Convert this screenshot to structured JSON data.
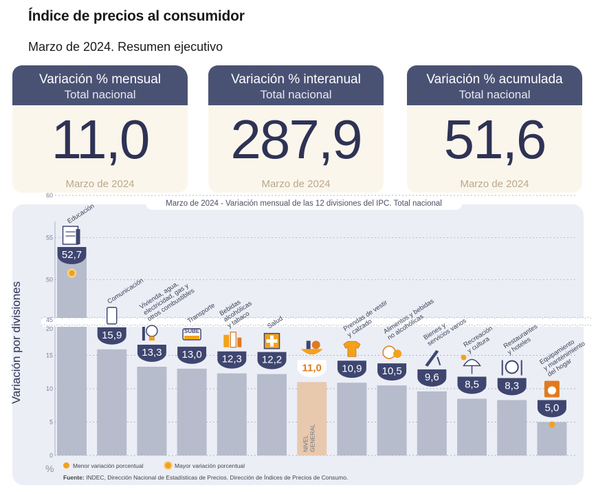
{
  "header": {
    "title": "Índice de precios al consumidor",
    "subtitle": "Marzo de 2024. Resumen ejecutivo"
  },
  "cards": [
    {
      "line1": "Variación % mensual",
      "line2": "Total nacional",
      "value": "11,0",
      "footer": "Marzo de 2024"
    },
    {
      "line1": "Variación % interanual",
      "line2": "Total nacional",
      "value": "287,9",
      "footer": "Marzo de 2024"
    },
    {
      "line1": "Variación % acumulada",
      "line2": "Total nacional",
      "value": "51,6",
      "footer": "Marzo de 2024"
    }
  ],
  "colors": {
    "navy": "#4a5274",
    "bar": "#b6bccb",
    "general_bar": "#e8c9ae",
    "accent": "#f2a21b",
    "label_navy": "#3e4670",
    "general_label": "#e07b1f"
  },
  "chart_data": {
    "type": "bar",
    "title_prefix": "Marzo de 2024",
    "title": "- Variación mensual de las 12 divisiones del IPC. Total nacional",
    "ylabel": "Variación por divisiones",
    "unit_label": "%",
    "y_ticks": [
      0,
      5,
      10,
      15,
      20,
      45,
      50,
      55,
      60
    ],
    "axis_break": [
      20,
      45
    ],
    "categories": [
      [
        "Educación"
      ],
      [
        "Comunicación"
      ],
      [
        "Vivienda, agua,",
        "electricidad, gas y",
        "otros combustibles"
      ],
      [
        "Transporte"
      ],
      [
        "Bebidas",
        "alcohólicas",
        "y tabaco"
      ],
      [
        "Salud"
      ],
      [
        "NIVEL",
        "GENERAL"
      ],
      [
        "Prendas de vestir",
        "y calzado"
      ],
      [
        "Alimentos y bebidas",
        "no alcohólicas"
      ],
      [
        "Bienes y",
        "servicios varios"
      ],
      [
        "Recreación",
        "y cultura"
      ],
      [
        "Restaurantes",
        "y hoteles"
      ],
      [
        "Equipamiento",
        "y mantenimiento",
        "del hogar"
      ]
    ],
    "values": [
      52.7,
      15.9,
      13.3,
      13.0,
      12.3,
      12.2,
      11.0,
      10.9,
      10.5,
      9.6,
      8.5,
      8.3,
      5.0
    ],
    "value_labels": [
      "52,7",
      "15,9",
      "13,3",
      "13,0",
      "12,3",
      "12,2",
      "11,0",
      "10,9",
      "10,5",
      "9,6",
      "8,5",
      "8,3",
      "5,0"
    ],
    "general_index": 6,
    "max_index": 0,
    "min_index": 12,
    "icons": [
      "education-icon",
      "phone-icon",
      "lightbulb-icon",
      "bus-icon",
      "bottles-icon",
      "medical-cross-icon",
      "basket-icon",
      "tshirt-icon",
      "food-icon",
      "comb-icon",
      "umbrella-icon",
      "cutlery-icon",
      "washing-machine-icon"
    ],
    "sube_label": "SUBE"
  },
  "legend": {
    "min": "Menor variación porcentual",
    "max": "Mayor variación porcentual"
  },
  "source": {
    "label": "Fuente:",
    "text": "INDEC, Dirección Nacional de Estadísticas de Precios. Dirección de Índices de Precios de Consumo."
  }
}
